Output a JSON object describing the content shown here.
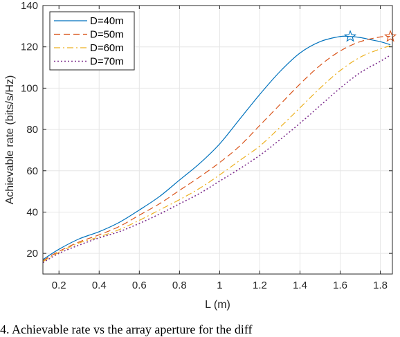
{
  "chart_data": {
    "type": "line",
    "xlabel": "L (m)",
    "ylabel": "Achievable rate (bits/s/Hz)",
    "xlim": [
      0.12,
      1.86
    ],
    "ylim": [
      10,
      140
    ],
    "xticks": [
      0.2,
      0.4,
      0.6,
      0.8,
      1,
      1.2,
      1.4,
      1.6,
      1.8
    ],
    "xtick_labels": [
      "0.2",
      "0.4",
      "0.6",
      "0.8",
      "1",
      "1.2",
      "1.4",
      "1.6",
      "1.8"
    ],
    "yticks": [
      20,
      40,
      60,
      80,
      100,
      120,
      140
    ],
    "ytick_labels": [
      "20",
      "40",
      "60",
      "80",
      "100",
      "120",
      "140"
    ],
    "grid": true,
    "legend_position": "top-left",
    "series": [
      {
        "name": "D=40m",
        "color": "#0072BD",
        "dash": "solid",
        "x": [
          0.12,
          0.2,
          0.3,
          0.4,
          0.5,
          0.6,
          0.7,
          0.8,
          0.9,
          1.0,
          1.1,
          1.2,
          1.3,
          1.4,
          1.5,
          1.6,
          1.65,
          1.7,
          1.75,
          1.8,
          1.85
        ],
        "y": [
          17,
          22,
          27,
          30.5,
          35,
          41,
          47.5,
          55.5,
          63.5,
          73,
          85,
          97,
          108,
          117,
          122.5,
          125,
          125,
          124.5,
          123.5,
          122.5,
          121
        ],
        "optimum": {
          "x": 1.65,
          "y": 125
        }
      },
      {
        "name": "D=50m",
        "color": "#D95319",
        "dash": "dashed",
        "x": [
          0.12,
          0.2,
          0.3,
          0.4,
          0.5,
          0.6,
          0.7,
          0.8,
          0.9,
          1.0,
          1.1,
          1.2,
          1.3,
          1.4,
          1.5,
          1.6,
          1.7,
          1.8,
          1.85
        ],
        "y": [
          16.5,
          21,
          25.5,
          29,
          33,
          38.5,
          44,
          50.5,
          57,
          64,
          72,
          82,
          92,
          102,
          111,
          118,
          122.5,
          124.8,
          125
        ],
        "optimum": {
          "x": 1.85,
          "y": 125
        }
      },
      {
        "name": "D=60m",
        "color": "#EDB120",
        "dash": "dashdot",
        "x": [
          0.12,
          0.2,
          0.3,
          0.4,
          0.5,
          0.6,
          0.7,
          0.8,
          0.9,
          1.0,
          1.1,
          1.2,
          1.3,
          1.4,
          1.5,
          1.6,
          1.7,
          1.8,
          1.85
        ],
        "y": [
          16,
          20.5,
          25,
          28,
          31.5,
          36,
          41,
          46,
          51.5,
          58,
          65,
          72,
          81,
          90.5,
          100,
          108.5,
          115,
          119,
          120.5
        ]
      },
      {
        "name": "D=70m",
        "color": "#7E2F8E",
        "dash": "dotted",
        "x": [
          0.12,
          0.2,
          0.3,
          0.4,
          0.5,
          0.6,
          0.7,
          0.8,
          0.9,
          1.0,
          1.1,
          1.2,
          1.3,
          1.4,
          1.5,
          1.6,
          1.7,
          1.8,
          1.85
        ],
        "y": [
          15.5,
          20,
          24,
          27.5,
          30.5,
          34.5,
          39,
          44,
          49,
          55,
          61,
          67.5,
          75,
          83,
          91.5,
          100,
          107.5,
          113,
          116
        ]
      }
    ]
  },
  "caption": "4. Achievable rate vs the array aperture for the diff"
}
